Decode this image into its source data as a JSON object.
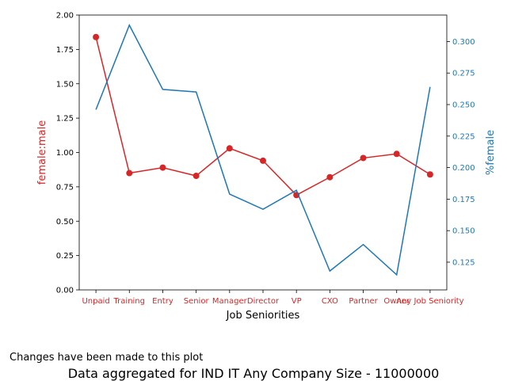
{
  "note": "Changes have been made to this plot",
  "caption": "Data aggregated for IND IT Any Company Size - 11000000",
  "colors": {
    "left": "#d62728",
    "right": "#1f77b4"
  },
  "chart_data": {
    "type": "line",
    "xlabel": "Job Seniorities",
    "categories": [
      "Unpaid",
      "Training",
      "Entry",
      "Senior",
      "Manager",
      "Director",
      "VP",
      "CXO",
      "Partner",
      "Owner",
      "Any Job Seniority"
    ],
    "left_axis": {
      "label": "female:male",
      "ylim": [
        0,
        2.0
      ],
      "ticks": [
        0.0,
        0.25,
        0.5,
        0.75,
        1.0,
        1.25,
        1.5,
        1.75,
        2.0
      ],
      "tick_labels": [
        "0.00",
        "0.25",
        "0.50",
        "0.75",
        "1.00",
        "1.25",
        "1.50",
        "1.75",
        "2.00"
      ]
    },
    "right_axis": {
      "label": "%⁠female",
      "ylim": [
        0.103,
        0.321
      ],
      "ticks": [
        0.125,
        0.15,
        0.175,
        0.2,
        0.225,
        0.25,
        0.275,
        0.3
      ],
      "tick_labels": [
        "0.125",
        "0.150",
        "0.175",
        "0.200",
        "0.225",
        "0.250",
        "0.275",
        "0.300"
      ]
    },
    "series": [
      {
        "name": "female:male",
        "axis": "left",
        "marker": "circle",
        "values": [
          1.84,
          0.85,
          0.89,
          0.83,
          1.03,
          0.94,
          0.69,
          0.82,
          0.96,
          0.99,
          0.84
        ]
      },
      {
        "name": "%female",
        "axis": "right",
        "marker": "none",
        "values": [
          0.246,
          0.313,
          0.262,
          0.26,
          0.179,
          0.167,
          0.182,
          0.118,
          0.139,
          0.115,
          0.264
        ]
      }
    ]
  }
}
